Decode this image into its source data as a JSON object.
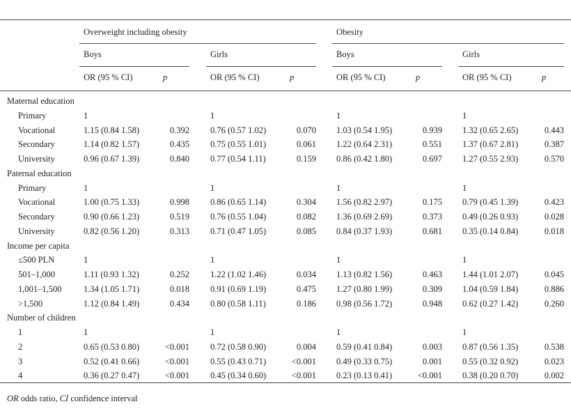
{
  "groups": [
    {
      "label": "Overweight including obesity"
    },
    {
      "label": "Obesity"
    }
  ],
  "sexes": [
    "Boys",
    "Girls",
    "Boys",
    "Girls"
  ],
  "or_header": "OR (95 % CI)",
  "p_header": "p",
  "sections": [
    {
      "label": "Maternal education",
      "rows": [
        {
          "label": "Primary",
          "cells": [
            "1",
            "",
            "1",
            "",
            "1",
            "",
            "1",
            ""
          ]
        },
        {
          "label": "Vocational",
          "cells": [
            "1.15 (0.84 1.58)",
            "0.392",
            "0.76 (0.57 1.02)",
            "0.070",
            "1.03 (0.54 1.95)",
            "0.939",
            "1.32 (0.65 2.65)",
            "0.443"
          ]
        },
        {
          "label": "Secondary",
          "cells": [
            "1.14 (0.82 1.57)",
            "0.435",
            "0.75 (0.55 1.01)",
            "0.061",
            "1.22 (0.64 2.31)",
            "0.551",
            "1.37 (0.67 2.81)",
            "0.387"
          ]
        },
        {
          "label": "University",
          "cells": [
            "0.96 (0.67 1.39)",
            "0.840",
            "0.77 (0.54 1.11)",
            "0.159",
            "0.86 (0.42 1.80)",
            "0.697",
            "1.27 (0.55 2.93)",
            "0.570"
          ]
        }
      ]
    },
    {
      "label": "Paternal education",
      "rows": [
        {
          "label": "Primary",
          "cells": [
            "1",
            "",
            "1",
            "",
            "1",
            "",
            "1",
            ""
          ]
        },
        {
          "label": "Vocational",
          "cells": [
            "1.00 (0.75 1.33)",
            "0.998",
            "0.86 (0.65 1.14)",
            "0.304",
            "1.56 (0.82 2.97)",
            "0.175",
            "0.79 (0.45 1.39)",
            "0.423"
          ]
        },
        {
          "label": "Secondary",
          "cells": [
            "0.90 (0.66 1.23)",
            "0.519",
            "0.76 (0.55 1.04)",
            "0.082",
            "1.36 (0.69 2.69)",
            "0.373",
            "0.49 (0.26 0.93)",
            "0.028"
          ]
        },
        {
          "label": "University",
          "cells": [
            "0.82 (0.56 1.20)",
            "0.313",
            "0.71 (0.47 1.05)",
            "0.085",
            "0.84 (0.37 1.93)",
            "0.681",
            "0.35 (0.14 0.84)",
            "0.018"
          ]
        }
      ]
    },
    {
      "label": "Income per capita",
      "rows": [
        {
          "label": "≤500 PLN",
          "cells": [
            "1",
            "",
            "1",
            "",
            "1",
            "",
            "1",
            ""
          ]
        },
        {
          "label": "501–1,000",
          "cells": [
            "1.11 (0.93 1.32)",
            "0.252",
            "1.22 (1.02 1.46)",
            "0.034",
            "1.13 (0.82 1.56)",
            "0.463",
            "1.44 (1.01 2.07)",
            "0.045"
          ]
        },
        {
          "label": "1,001–1,500",
          "cells": [
            "1.34 (1.05 1.71)",
            "0.018",
            "0.91 (0.69 1.19)",
            "0.475",
            "1.27 (0.80 1.99)",
            "0.309",
            "1.04 (0.59 1.84)",
            "0.886"
          ]
        },
        {
          "label": ">1,500",
          "cells": [
            "1.12 (0.84 1.49)",
            "0.434",
            "0.80 (0.58 1.11)",
            "0.186",
            "0.98 (0.56 1.72)",
            "0.948",
            "0.62 (0.27 1.42)",
            "0.260"
          ]
        }
      ]
    },
    {
      "label": "Number of children",
      "rows": [
        {
          "label": "1",
          "cells": [
            "1",
            "",
            "1",
            "",
            "1",
            "",
            "1",
            ""
          ]
        },
        {
          "label": "2",
          "cells": [
            "0.65 (0.53 0.80)",
            "<0.001",
            "0.72 (0.58 0.90)",
            "0.004",
            "0.59 (0.41 0.84)",
            "0.003",
            "0.87 (0.56 1.35)",
            "0.538"
          ]
        },
        {
          "label": "3",
          "cells": [
            "0.52 (0.41 0.66)",
            "<0.001",
            "0.55 (0.43 0.71)",
            "<0.001",
            "0.49 (0.33 0.75)",
            "0.001",
            "0.55 (0.32 0.92)",
            "0.023"
          ]
        },
        {
          "label": "4",
          "cells": [
            "0.36 (0.27 0.47)",
            "<0.001",
            "0.45 (0.34 0.60)",
            "<0.001",
            "0.23 (0.13 0.41)",
            "<0.001",
            "0.38 (0.20 0.70)",
            "0.002"
          ]
        }
      ]
    }
  ],
  "footnote": {
    "or_abbr": "OR",
    "or_text": " odds ratio, ",
    "ci_abbr": "CI",
    "ci_text": " confidence interval"
  }
}
